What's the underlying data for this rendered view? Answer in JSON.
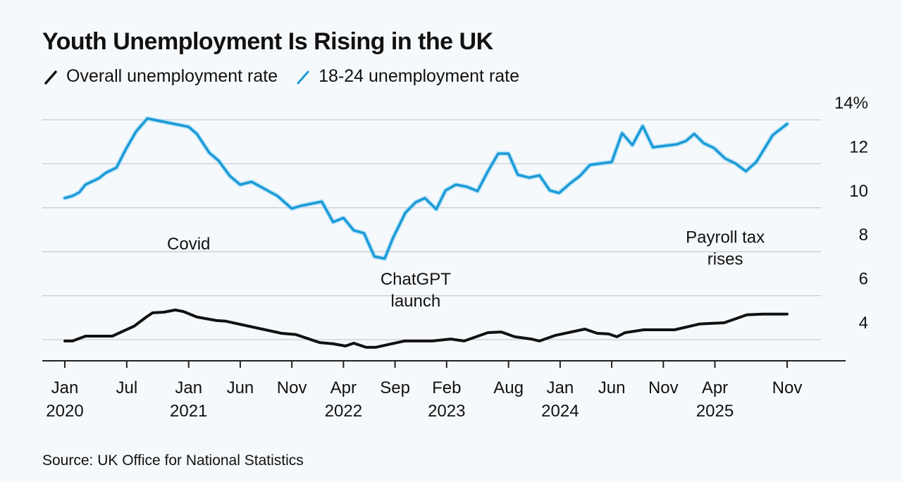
{
  "title": "Youth Unemployment Is Rising in the UK",
  "legend": [
    {
      "label": "Overall unemployment rate",
      "color": "#111111",
      "icon": "slash-line-icon"
    },
    {
      "label": "18-24 unemployment rate",
      "color": "#1a9ad6",
      "icon": "slash-line-icon"
    }
  ],
  "source": "Source: UK Office for National Statistics",
  "chart_data": {
    "type": "line",
    "title": "Youth Unemployment Is Rising in the UK",
    "xlabel": "",
    "ylabel": "",
    "x_unit": "months since Jan 2020",
    "xlim": [
      0,
      70
    ],
    "ylim": [
      3,
      14
    ],
    "grid": true,
    "y_axis_side": "right",
    "y_ticks": [
      {
        "value": 14,
        "label": "14%"
      },
      {
        "value": 12,
        "label": "12"
      },
      {
        "value": 10,
        "label": "10"
      },
      {
        "value": 8,
        "label": "8"
      },
      {
        "value": 6,
        "label": "6"
      },
      {
        "value": 4,
        "label": "4"
      }
    ],
    "x_ticks": [
      {
        "x": 0,
        "month": "Jan",
        "year": "2020"
      },
      {
        "x": 6,
        "month": "Jul",
        "year": ""
      },
      {
        "x": 12,
        "month": "Jan",
        "year": "2021"
      },
      {
        "x": 17,
        "month": "Jun",
        "year": ""
      },
      {
        "x": 22,
        "month": "Nov",
        "year": ""
      },
      {
        "x": 27,
        "month": "Apr",
        "year": "2022"
      },
      {
        "x": 32,
        "month": "Sep",
        "year": ""
      },
      {
        "x": 37,
        "month": "Feb",
        "year": "2023"
      },
      {
        "x": 43,
        "month": "Aug",
        "year": ""
      },
      {
        "x": 48,
        "month": "Jan",
        "year": "2024"
      },
      {
        "x": 53,
        "month": "Jun",
        "year": ""
      },
      {
        "x": 58,
        "month": "Nov",
        "year": ""
      },
      {
        "x": 63,
        "month": "Apr",
        "year": "2025"
      },
      {
        "x": 70,
        "month": "Nov",
        "year": ""
      }
    ],
    "legend_position": "top-left",
    "series": [
      {
        "name": "Overall unemployment rate",
        "color": "#111111",
        "points": [
          [
            0,
            3.94
          ],
          [
            0.75,
            3.94
          ],
          [
            2,
            4.16
          ],
          [
            4.6,
            4.16
          ],
          [
            5.8,
            4.42
          ],
          [
            6.7,
            4.61
          ],
          [
            7.9,
            5.03
          ],
          [
            8.5,
            5.22
          ],
          [
            9.6,
            5.25
          ],
          [
            10.7,
            5.35
          ],
          [
            11.5,
            5.28
          ],
          [
            12.8,
            5.03
          ],
          [
            14.7,
            4.87
          ],
          [
            15.6,
            4.84
          ],
          [
            21,
            4.29
          ],
          [
            22.4,
            4.23
          ],
          [
            24.7,
            3.87
          ],
          [
            26,
            3.81
          ],
          [
            27.2,
            3.71
          ],
          [
            28,
            3.84
          ],
          [
            29.2,
            3.65
          ],
          [
            30.1,
            3.65
          ],
          [
            32.9,
            3.94
          ],
          [
            35.6,
            3.94
          ],
          [
            37.4,
            4.03
          ],
          [
            38.7,
            3.94
          ],
          [
            41,
            4.32
          ],
          [
            42.3,
            4.35
          ],
          [
            43.6,
            4.13
          ],
          [
            45.2,
            4.03
          ],
          [
            46,
            3.94
          ],
          [
            47.5,
            4.19
          ],
          [
            50.4,
            4.48
          ],
          [
            51.6,
            4.29
          ],
          [
            52.7,
            4.26
          ],
          [
            53.5,
            4.13
          ],
          [
            54.3,
            4.32
          ],
          [
            56.1,
            4.45
          ],
          [
            59.1,
            4.45
          ],
          [
            61.5,
            4.71
          ],
          [
            63.9,
            4.77
          ],
          [
            66.1,
            5.13
          ],
          [
            67.6,
            5.16
          ],
          [
            70,
            5.16
          ]
        ]
      },
      {
        "name": "18-24 unemployment rate",
        "color": "#1a9ad6",
        "points": [
          [
            0,
            10.44
          ],
          [
            0.75,
            10.54
          ],
          [
            1.4,
            10.7
          ],
          [
            2,
            11.05
          ],
          [
            3.3,
            11.34
          ],
          [
            4,
            11.6
          ],
          [
            5,
            11.82
          ],
          [
            5.9,
            12.65
          ],
          [
            6.9,
            13.46
          ],
          [
            8,
            14.06
          ],
          [
            12,
            13.68
          ],
          [
            12.8,
            13.36
          ],
          [
            14,
            12.5
          ],
          [
            14.9,
            12.14
          ],
          [
            16,
            11.44
          ],
          [
            17,
            11.05
          ],
          [
            18.1,
            11.18
          ],
          [
            20.6,
            10.54
          ],
          [
            22,
            9.96
          ],
          [
            22.9,
            10.09
          ],
          [
            24.9,
            10.28
          ],
          [
            26,
            9.35
          ],
          [
            27,
            9.54
          ],
          [
            28,
            8.97
          ],
          [
            29,
            8.84
          ],
          [
            30,
            7.78
          ],
          [
            31,
            7.69
          ],
          [
            31.8,
            8.62
          ],
          [
            33,
            9.77
          ],
          [
            34,
            10.25
          ],
          [
            34.9,
            10.44
          ],
          [
            36,
            9.93
          ],
          [
            36.9,
            10.79
          ],
          [
            37.9,
            11.05
          ],
          [
            38.9,
            10.96
          ],
          [
            40,
            10.76
          ],
          [
            41,
            11.66
          ],
          [
            42,
            12.46
          ],
          [
            43,
            12.46
          ],
          [
            43.9,
            11.5
          ],
          [
            45,
            11.37
          ],
          [
            46,
            11.47
          ],
          [
            47,
            10.79
          ],
          [
            47.9,
            10.67
          ],
          [
            49,
            11.12
          ],
          [
            49.9,
            11.44
          ],
          [
            50.9,
            11.95
          ],
          [
            53,
            12.08
          ],
          [
            54,
            13.39
          ],
          [
            55,
            12.85
          ],
          [
            56,
            13.71
          ],
          [
            57,
            12.75
          ],
          [
            59.3,
            12.88
          ],
          [
            60.2,
            13.04
          ],
          [
            61,
            13.36
          ],
          [
            61.9,
            12.94
          ],
          [
            62.9,
            12.72
          ],
          [
            64,
            12.24
          ],
          [
            65,
            12.01
          ],
          [
            66,
            11.66
          ],
          [
            67,
            12.08
          ],
          [
            68.6,
            13.3
          ],
          [
            70,
            13.81
          ]
        ]
      }
    ],
    "annotations": [
      {
        "lines": [
          "Covid"
        ],
        "x": 12,
        "y": 8.1
      },
      {
        "lines": [
          "ChatGPT",
          "launch"
        ],
        "x": 34,
        "y": 6.5
      },
      {
        "lines": [
          "Payroll tax",
          "rises"
        ],
        "x": 64,
        "y": 8.4
      }
    ]
  }
}
